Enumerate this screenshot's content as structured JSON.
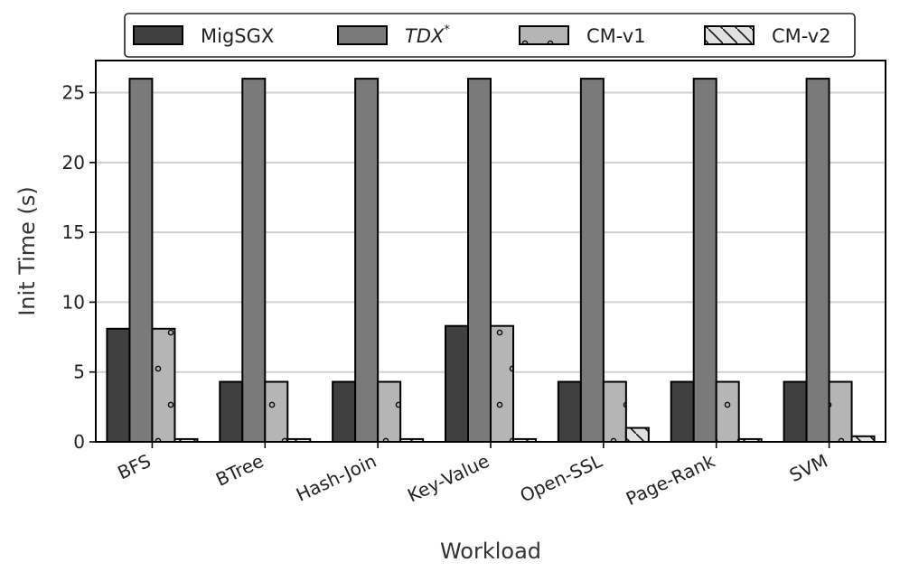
{
  "chart_data": {
    "type": "bar",
    "categories": [
      "BFS",
      "BTree",
      "Hash-Join",
      "Key-Value",
      "Open-SSL",
      "Page-Rank",
      "SVM"
    ],
    "series": [
      {
        "name": "MigSGX",
        "values": [
          8.1,
          4.3,
          4.3,
          8.3,
          4.3,
          4.3,
          4.3
        ],
        "color": "#404040",
        "pattern": "none"
      },
      {
        "name": "TDX",
        "name_sup": "*",
        "italic": true,
        "values": [
          26.0,
          26.0,
          26.0,
          26.0,
          26.0,
          26.0,
          26.0
        ],
        "color": "#7a7a7a",
        "pattern": "none"
      },
      {
        "name": "CM-v1",
        "values": [
          8.1,
          4.3,
          4.3,
          8.3,
          4.3,
          4.3,
          4.3
        ],
        "color": "#b5b5b5",
        "pattern": "dots"
      },
      {
        "name": "CM-v2",
        "values": [
          0.2,
          0.2,
          0.2,
          0.2,
          1.0,
          0.2,
          0.4
        ],
        "color": "#e0e0e0",
        "pattern": "diagonal"
      }
    ],
    "xlabel": "Workload",
    "ylabel": "Init Time (s)",
    "ylim": [
      0,
      27.3
    ],
    "yticks": [
      0,
      5,
      10,
      15,
      20,
      25
    ],
    "grid": "horizontal",
    "legend_position": "top-center"
  }
}
